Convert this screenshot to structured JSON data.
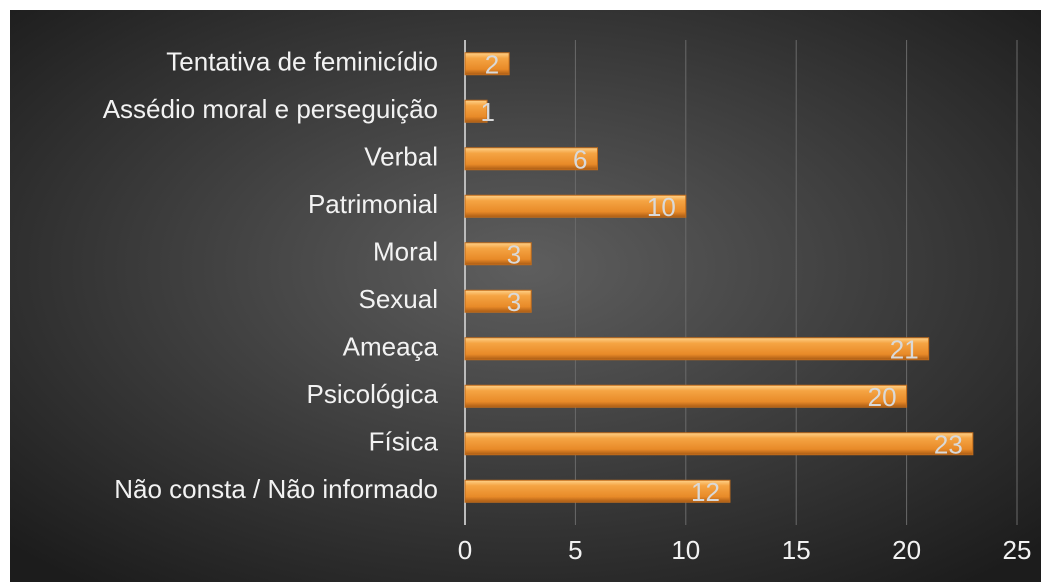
{
  "chart_data": {
    "type": "bar",
    "orientation": "horizontal",
    "categories": [
      "Tentativa de feminicídio",
      "Assédio moral e perseguição",
      "Verbal",
      "Patrimonial",
      "Moral",
      "Sexual",
      "Ameaça",
      "Psicológica",
      "Física",
      "Não consta / Não informado"
    ],
    "values": [
      2,
      1,
      6,
      10,
      3,
      3,
      21,
      20,
      23,
      12
    ],
    "color": "#f09a36",
    "xlim": [
      0,
      25
    ],
    "xticks": [
      0,
      5,
      10,
      15,
      20,
      25
    ],
    "grid": true
  }
}
